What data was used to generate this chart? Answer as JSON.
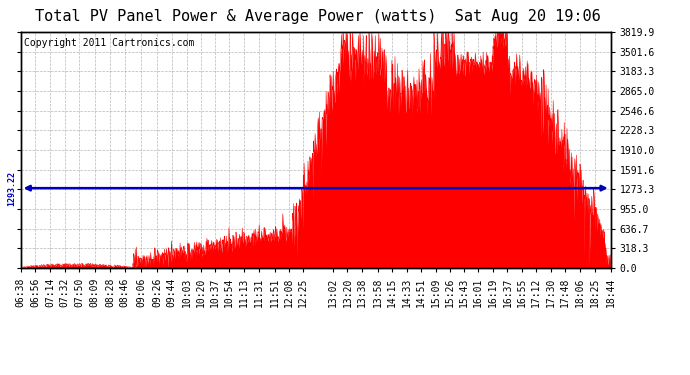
{
  "title": "Total PV Panel Power & Average Power (watts)  Sat Aug 20 19:06",
  "copyright": "Copyright 2011 Cartronics.com",
  "avg_line_value": 1293.22,
  "avg_label": "1293.22",
  "y_max": 3819.9,
  "y_min": 0.0,
  "ytick_values": [
    0.0,
    318.3,
    636.7,
    955.0,
    1273.3,
    1591.6,
    1910.0,
    2228.3,
    2546.6,
    2865.0,
    3183.3,
    3501.6,
    3819.9
  ],
  "fill_color": "#FF0000",
  "line_color": "#FF0000",
  "avg_line_color": "#0000BB",
  "background_color": "#FFFFFF",
  "plot_bg_color": "#FFFFFF",
  "title_fontsize": 11,
  "copyright_fontsize": 7,
  "tick_fontsize": 7,
  "x_times": [
    "06:38",
    "06:56",
    "07:14",
    "07:32",
    "07:50",
    "08:09",
    "08:28",
    "08:46",
    "09:06",
    "09:26",
    "09:44",
    "10:03",
    "10:20",
    "10:37",
    "10:54",
    "11:13",
    "11:31",
    "11:51",
    "12:08",
    "12:25",
    "13:02",
    "13:20",
    "13:38",
    "13:58",
    "14:15",
    "14:33",
    "14:51",
    "15:09",
    "15:26",
    "15:43",
    "16:01",
    "16:19",
    "16:37",
    "16:55",
    "17:12",
    "17:30",
    "17:48",
    "18:06",
    "18:25",
    "18:44"
  ]
}
